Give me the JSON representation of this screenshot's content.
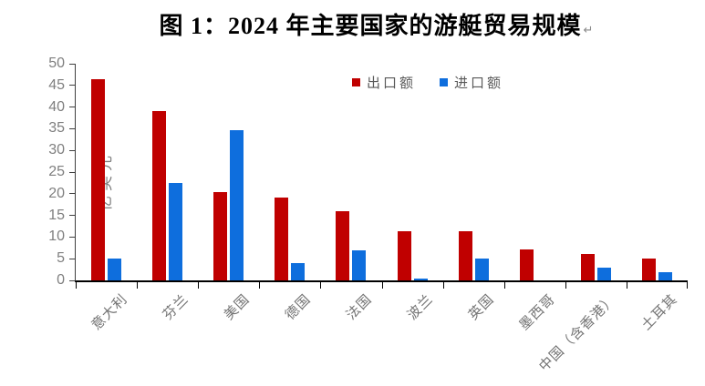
{
  "title": {
    "text": "图 1：2024 年主要国家的游艇贸易规模",
    "paragraph_mark": "↵"
  },
  "chart_data": {
    "type": "bar",
    "title": "图 1：2024 年主要国家的游艇贸易规模",
    "xlabel": "",
    "ylabel": "亿美元",
    "ylim": [
      0,
      50
    ],
    "yticks": [
      0,
      5,
      10,
      15,
      20,
      25,
      30,
      35,
      40,
      45,
      50
    ],
    "grid": false,
    "legend_position": "top-center-inside",
    "categories": [
      "意大利",
      "芬兰",
      "美国",
      "德国",
      "法国",
      "波兰",
      "英国",
      "墨西哥",
      "中国（含香港）",
      "土耳其"
    ],
    "series": [
      {
        "name": "出口额",
        "color": "#c00000",
        "values": [
          46.5,
          39,
          20.3,
          19.2,
          16,
          11.3,
          11.3,
          7.2,
          6,
          5
        ]
      },
      {
        "name": "进口额",
        "color": "#0e6edd",
        "values": [
          5,
          22.5,
          34.7,
          4,
          7,
          0.5,
          5,
          0,
          3,
          1.8
        ]
      }
    ]
  },
  "colors": {
    "export_red": "#c00000",
    "import_blue": "#0e6edd",
    "axis_line": "#000000",
    "tick_label_gray": "#7f7f7f"
  }
}
